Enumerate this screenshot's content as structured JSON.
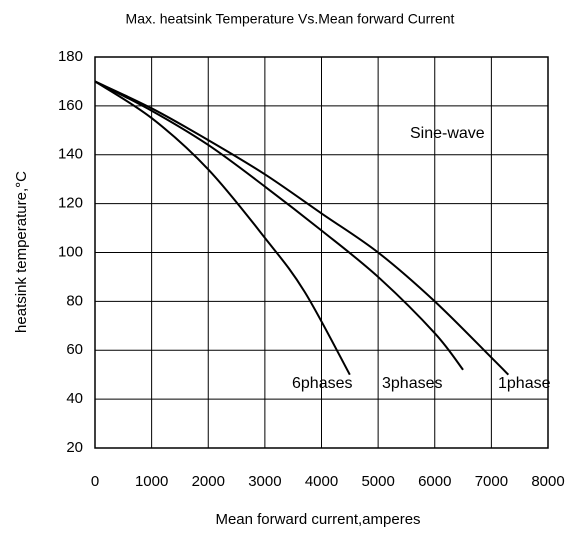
{
  "chart_data": {
    "type": "line",
    "title": "Max. heatsink Temperature Vs.Mean forward Current",
    "x_label": "Mean forward current,amperes",
    "y_label": "heatsink temperature,°C",
    "xlim": [
      0,
      8000
    ],
    "ylim": [
      20,
      180
    ],
    "xticks": [
      0,
      1000,
      2000,
      3000,
      4000,
      5000,
      6000,
      7000,
      8000
    ],
    "yticks": [
      20,
      40,
      60,
      80,
      100,
      120,
      140,
      160,
      180
    ],
    "grid": true,
    "annotations": [
      "Sine-wave"
    ],
    "series": [
      {
        "name": "1phase",
        "color": "#000000",
        "x": [
          0,
          1000,
          2000,
          3000,
          4000,
          5000,
          6000,
          7000,
          7300
        ],
        "values": [
          170,
          159,
          146,
          132,
          116,
          100,
          80,
          57,
          50
        ]
      },
      {
        "name": "3phases",
        "color": "#000000",
        "x": [
          0,
          1000,
          2000,
          3000,
          4000,
          5000,
          6000,
          6500
        ],
        "values": [
          170,
          158,
          144,
          127,
          109,
          90,
          67,
          52
        ]
      },
      {
        "name": "6phases",
        "color": "#000000",
        "x": [
          0,
          1000,
          2000,
          3000,
          3700,
          4500
        ],
        "values": [
          170,
          155,
          134,
          106,
          84,
          50
        ]
      }
    ]
  }
}
